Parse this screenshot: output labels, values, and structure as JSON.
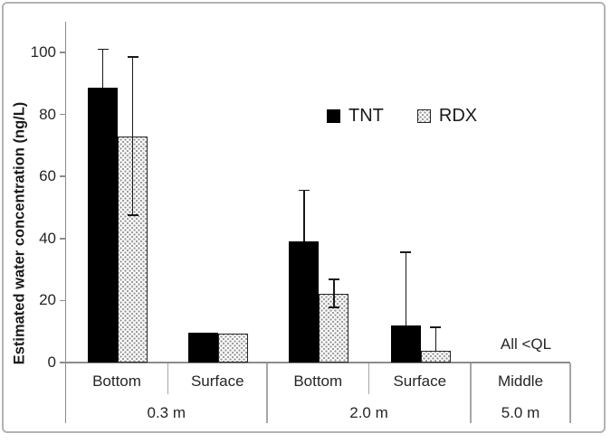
{
  "chart_data": {
    "type": "bar",
    "title": "",
    "xlabel": "",
    "ylabel": "Estimated water concentration (ng/L)",
    "ylim": [
      0,
      110
    ],
    "yticks": [
      0,
      20,
      40,
      60,
      80,
      100
    ],
    "grid": false,
    "legend": {
      "entries": [
        "TNT",
        "RDX"
      ],
      "position": "upper-center"
    },
    "categories": [
      "Bottom",
      "Surface",
      "Bottom",
      "Surface",
      "Middle"
    ],
    "groups": [
      {
        "label": "0.3 m",
        "span": [
          0,
          2
        ]
      },
      {
        "label": "2.0 m",
        "span": [
          2,
          4
        ]
      },
      {
        "label": "5.0 m",
        "span": [
          4,
          5
        ]
      }
    ],
    "series": [
      {
        "name": "TNT",
        "pattern": "solid",
        "fill": "#000000",
        "values": [
          88.5,
          9.5,
          39,
          12,
          null
        ],
        "err_up": [
          12.5,
          null,
          16.5,
          23.5,
          null
        ],
        "err_down": [
          null,
          null,
          null,
          null,
          null
        ]
      },
      {
        "name": "RDX",
        "pattern": "stipple-dots",
        "fill": "#9a9a9a",
        "values": [
          73,
          9.3,
          22.3,
          3.9,
          null
        ],
        "err_up": [
          25.5,
          null,
          4.5,
          7.5,
          null
        ],
        "err_down": [
          25.5,
          null,
          4.5,
          null,
          null
        ]
      }
    ],
    "annotation": {
      "text": "All <QL",
      "target_category": "Middle / 5.0 m"
    }
  },
  "colors": {
    "axis": "#8c8c8c",
    "table_lines": "#a6a6a6",
    "text": "#262626",
    "bar_tnt": "#000000",
    "bar_rdx_dots": "#9a9a9a",
    "error_bar": "#1a1a1a",
    "frame_border": "#b3b3b3",
    "background": "#ffffff"
  }
}
